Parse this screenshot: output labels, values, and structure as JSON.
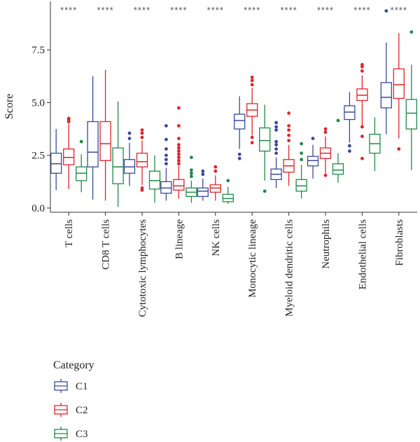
{
  "chart_data": {
    "type": "boxplot",
    "ylabel": "Score",
    "ylim": [
      -0.2,
      9.8
    ],
    "yticks": [
      "0.0",
      "2.5",
      "5.0",
      "7.5"
    ],
    "ytick_values": [
      0.0,
      2.5,
      5.0,
      7.5
    ],
    "categories": [
      "T cells",
      "CD8 T cells",
      "Cytotoxic lymphocytes",
      "B lineage",
      "NK cells",
      "Monocytic lineage",
      "Myeloid dendritic cells",
      "Neutrophils",
      "Endothelial cells",
      "Fibroblasts"
    ],
    "significance": [
      "****",
      "****",
      "****",
      "****",
      "****",
      "****",
      "****",
      "****",
      "****",
      "****"
    ],
    "legend": {
      "title": "Category",
      "position": "bottom-left"
    },
    "colors": {
      "C1": "#3b4a9a",
      "C2": "#e0242b",
      "C3": "#1e8a4a"
    },
    "series": [
      {
        "name": "C1",
        "boxes": [
          {
            "min": 0.85,
            "q1": 1.65,
            "median": 2.1,
            "q3": 2.6,
            "max": 3.75,
            "outliers": []
          },
          {
            "min": 0.4,
            "q1": 1.95,
            "median": 2.65,
            "q3": 4.1,
            "max": 6.25,
            "outliers": []
          },
          {
            "min": 1.05,
            "q1": 1.65,
            "median": 1.95,
            "q3": 2.3,
            "max": 3.1,
            "outliers": [
              3.3,
              3.55
            ]
          },
          {
            "min": 0.35,
            "q1": 0.7,
            "median": 0.95,
            "q3": 1.25,
            "max": 1.9,
            "outliers": [
              2.1,
              2.3,
              2.5,
              2.8,
              3.25,
              3.9
            ]
          },
          {
            "min": 0.35,
            "q1": 0.55,
            "median": 0.8,
            "q3": 0.95,
            "max": 1.4,
            "outliers": [
              1.6,
              1.75
            ]
          },
          {
            "min": 2.8,
            "q1": 3.75,
            "median": 4.15,
            "q3": 4.45,
            "max": 5.3,
            "outliers": [
              2.55,
              2.35
            ]
          },
          {
            "min": 0.95,
            "q1": 1.35,
            "median": 1.6,
            "q3": 1.85,
            "max": 2.4,
            "outliers": [
              2.6,
              2.8,
              3.0,
              3.15,
              3.7,
              3.85,
              4.05
            ]
          },
          {
            "min": 1.4,
            "q1": 2.0,
            "median": 2.25,
            "q3": 2.45,
            "max": 3.0,
            "outliers": [
              3.3
            ]
          },
          {
            "min": 3.1,
            "q1": 4.2,
            "median": 4.55,
            "q3": 4.85,
            "max": 5.5,
            "outliers": [
              2.95,
              2.7
            ]
          },
          {
            "min": 3.5,
            "q1": 4.75,
            "median": 5.25,
            "q3": 5.95,
            "max": 7.85,
            "outliers": [
              9.35
            ]
          }
        ]
      },
      {
        "name": "C2",
        "boxes": [
          {
            "min": 0.9,
            "q1": 2.05,
            "median": 2.4,
            "q3": 2.8,
            "max": 4.0,
            "outliers": [
              4.1,
              4.2,
              4.25
            ]
          },
          {
            "min": 0.35,
            "q1": 2.25,
            "median": 3.05,
            "q3": 4.1,
            "max": 6.55,
            "outliers": []
          },
          {
            "min": 1.1,
            "q1": 1.95,
            "median": 2.2,
            "q3": 2.6,
            "max": 3.2,
            "outliers": [
              3.35,
              3.55,
              3.7,
              0.85,
              0.95
            ]
          },
          {
            "min": 0.45,
            "q1": 0.85,
            "median": 1.05,
            "q3": 1.35,
            "max": 2.0,
            "outliers": [
              2.1,
              2.25,
              2.4,
              2.55,
              2.7,
              2.85,
              3.0,
              3.3,
              3.9,
              4.75
            ]
          },
          {
            "min": 0.35,
            "q1": 0.75,
            "median": 0.95,
            "q3": 1.1,
            "max": 1.55,
            "outliers": [
              1.75,
              1.95
            ]
          },
          {
            "min": 3.45,
            "q1": 4.35,
            "median": 4.65,
            "q3": 4.95,
            "max": 5.7,
            "outliers": [
              5.85,
              6.05,
              6.2,
              3.35,
              3.1
            ]
          },
          {
            "min": 1.05,
            "q1": 1.7,
            "median": 2.0,
            "q3": 2.3,
            "max": 3.0,
            "outliers": [
              3.2,
              3.45,
              3.7,
              3.9,
              4.5
            ]
          },
          {
            "min": 1.65,
            "q1": 2.35,
            "median": 2.6,
            "q3": 2.85,
            "max": 3.4,
            "outliers": [
              3.6,
              3.75,
              1.55
            ]
          },
          {
            "min": 3.85,
            "q1": 5.1,
            "median": 5.35,
            "q3": 5.65,
            "max": 6.3,
            "outliers": [
              6.5,
              6.7,
              6.8,
              3.85,
              3.4,
              2.35
            ]
          },
          {
            "min": 3.3,
            "q1": 5.2,
            "median": 5.85,
            "q3": 6.6,
            "max": 8.3,
            "outliers": [
              2.8
            ]
          }
        ]
      },
      {
        "name": "C3",
        "boxes": [
          {
            "min": 0.75,
            "q1": 1.3,
            "median": 1.65,
            "q3": 1.95,
            "max": 2.55,
            "outliers": [
              3.15
            ]
          },
          {
            "min": 0.05,
            "q1": 1.15,
            "median": 1.95,
            "q3": 2.85,
            "max": 5.05,
            "outliers": []
          },
          {
            "min": 0.25,
            "q1": 0.9,
            "median": 1.3,
            "q3": 1.75,
            "max": 2.5,
            "outliers": []
          },
          {
            "min": 0.25,
            "q1": 0.55,
            "median": 0.75,
            "q3": 0.95,
            "max": 1.3,
            "outliers": [
              1.5,
              1.65,
              1.8,
              2.4
            ]
          },
          {
            "min": 0.2,
            "q1": 0.3,
            "median": 0.45,
            "q3": 0.65,
            "max": 1.0,
            "outliers": [
              1.3
            ]
          },
          {
            "min": 1.3,
            "q1": 2.7,
            "median": 3.2,
            "q3": 3.8,
            "max": 4.9,
            "outliers": [
              0.8
            ]
          },
          {
            "min": 0.45,
            "q1": 0.8,
            "median": 1.05,
            "q3": 1.35,
            "max": 2.05,
            "outliers": [
              2.3,
              2.6,
              3.05
            ]
          },
          {
            "min": 1.2,
            "q1": 1.6,
            "median": 1.8,
            "q3": 2.1,
            "max": 2.6,
            "outliers": [
              4.15
            ]
          },
          {
            "min": 1.75,
            "q1": 2.6,
            "median": 3.05,
            "q3": 3.5,
            "max": 4.3,
            "outliers": []
          },
          {
            "min": 1.8,
            "q1": 3.75,
            "median": 4.5,
            "q3": 5.15,
            "max": 6.8,
            "outliers": [
              8.35
            ]
          }
        ]
      }
    ]
  }
}
